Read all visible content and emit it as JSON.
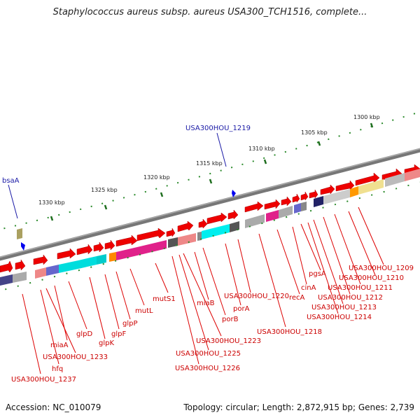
{
  "title": "Staphylococcus aureus subsp. aureus USA300_TCH1516, complete...",
  "footer": {
    "accession": "Accession: NC_010079",
    "summary": "Topology: circular; Length: 2,872,915 bp; Genes: 2,739"
  },
  "kbp_labels": [
    "1300 kbp",
    "1305 kbp",
    "1310 kbp",
    "1315 kbp",
    "1320 kbp",
    "1325 kbp",
    "1330 kbp"
  ],
  "blue_labels": [
    "USA300HOU_1219",
    "bsaA"
  ],
  "gene_labels": [
    "USA300HOU_1209",
    "USA300HOU_1210",
    "USA300HOU_1211",
    "USA300HOU_1212",
    "USA300HOU_1213",
    "USA300HOU_1214",
    "pgsA",
    "cinA",
    "recA",
    "USA300HOU_1218",
    "USA300HOU_1220",
    "porA",
    "porB",
    "miaB",
    "USA300HOU_1223",
    "USA300HOU_1225",
    "USA300HOU_1226",
    "mutS1",
    "mutL",
    "glpP",
    "glpF",
    "glpK",
    "glpD",
    "miaA",
    "USA300HOU_1233",
    "hfq",
    "USA300HOU_1237"
  ]
}
